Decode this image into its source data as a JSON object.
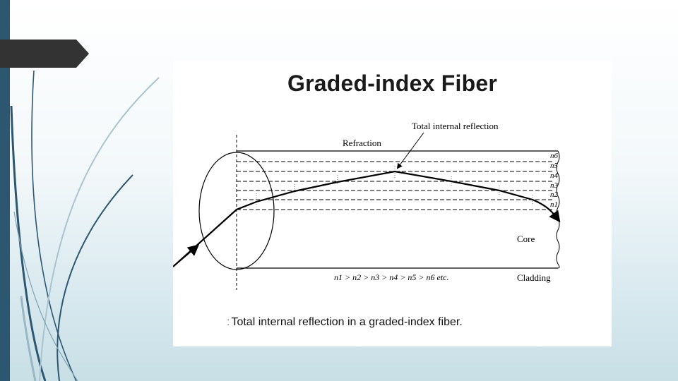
{
  "slide": {
    "accent_color": "#2d5771",
    "tab_color": "#333333"
  },
  "figure": {
    "title": "Graded-index Fiber",
    "caption_prefix": ":",
    "caption": "Total internal reflection in a graded-index fiber.",
    "labels": {
      "refraction": "Refraction",
      "total_internal_reflection": "Total internal reflection",
      "core": "Core",
      "cladding": "Cladding",
      "index_relation": "n1 > n2 > n3 > n4 > n5 > n6 etc."
    },
    "indices": [
      "n6",
      "n5",
      "n4",
      "n3",
      "n2",
      "n1"
    ]
  }
}
